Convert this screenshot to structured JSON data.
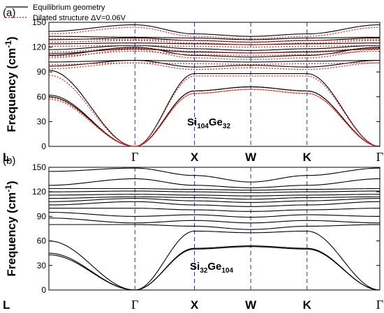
{
  "chart_data": [
    {
      "type": "line",
      "panel_label": "(a)",
      "ylabel": "Frequency (cm-1)",
      "ylabel_parts": {
        "main": "Frequency (cm",
        "sup": "-1",
        "close": ")"
      },
      "ylim": [
        0,
        150
      ],
      "yticks": [
        "0",
        "30",
        "60",
        "90",
        "120",
        "150"
      ],
      "kpoints": [
        "L",
        "Γ",
        "X",
        "W",
        "K",
        "Γ"
      ],
      "kpos": [
        0,
        0.26,
        0.44,
        0.61,
        0.78,
        1.0
      ],
      "annotation": {
        "element1": "Si",
        "sub1": "104",
        "element2": "Ge",
        "sub2": "32"
      },
      "legend": [
        {
          "label": "Equilibrium geometry",
          "style": "solid",
          "color": "#000000"
        },
        {
          "label": "Dilated structure ΔV=0.06V",
          "style": "dotted",
          "color": "#e0302a"
        }
      ],
      "series": [
        {
          "name": "Equilibrium geometry",
          "style": "solid",
          "color": "#000000",
          "bands": [
            [
              60,
              0,
              67,
              72,
              67,
              0
            ],
            [
              62,
              0,
              67,
              72,
              67,
              0
            ],
            [
              92,
              0,
              88,
              88,
              88,
              0
            ],
            [
              97,
              104,
              96,
              98,
              96,
              104
            ],
            [
              102,
              104,
              103,
              102,
              103,
              104
            ],
            [
              110,
              120,
              110,
              108,
              110,
              120
            ],
            [
              112,
              118,
              114,
              113,
              114,
              118
            ],
            [
              117,
              122,
              118,
              116,
              118,
              122
            ],
            [
              124,
              125,
              124,
              123,
              124,
              125
            ],
            [
              129,
              131,
              128,
              126,
              128,
              131
            ],
            [
              133,
              132,
              131,
              129,
              131,
              132
            ],
            [
              139,
              147,
              136,
              133,
              136,
              147
            ]
          ]
        },
        {
          "name": "Dilated structure ΔV=0.06V",
          "style": "dotted",
          "color": "#e0302a",
          "bands": [
            [
              57,
              0,
              64,
              69,
              64,
              0
            ],
            [
              59,
              0,
              64,
              69,
              64,
              0
            ],
            [
              86,
              0,
              85,
              85,
              85,
              0
            ],
            [
              94,
              101,
              93,
              95,
              93,
              101
            ],
            [
              99,
              101,
              100,
              99,
              100,
              101
            ],
            [
              107,
              117,
              107,
              105,
              107,
              117
            ],
            [
              109,
              115,
              111,
              110,
              111,
              115
            ],
            [
              114,
              119,
              115,
              113,
              115,
              119
            ],
            [
              121,
              122,
              121,
              120,
              121,
              122
            ],
            [
              126,
              128,
              125,
              123,
              125,
              128
            ],
            [
              130,
              129,
              128,
              126,
              128,
              129
            ],
            [
              136,
              144,
              133,
              130,
              133,
              144
            ]
          ]
        }
      ]
    },
    {
      "type": "line",
      "panel_label": "(b)",
      "ylabel": "Frequency (cm-1)",
      "ylabel_parts": {
        "main": "Frequency (cm",
        "sup": "-1",
        "close": ")"
      },
      "ylim": [
        0,
        150
      ],
      "yticks": [
        "0",
        "30",
        "60",
        "90",
        "120",
        "150"
      ],
      "kpoints": [
        "L",
        "Γ",
        "X",
        "W",
        "K",
        "Γ"
      ],
      "kpos": [
        0,
        0.26,
        0.44,
        0.61,
        0.78,
        1.0
      ],
      "annotation": {
        "element1": "Si",
        "sub1": "32",
        "element2": "Ge",
        "sub2": "104"
      },
      "series": [
        {
          "style": "solid",
          "color": "#000000",
          "bands": [
            [
              43,
              0,
              50,
              53,
              50,
              0
            ],
            [
              45,
              0,
              51,
              54,
              51,
              0
            ],
            [
              60,
              0,
              72,
              70,
              72,
              0
            ],
            [
              80,
              80,
              78,
              74,
              78,
              80
            ],
            [
              88,
              82,
              85,
              82,
              85,
              82
            ],
            [
              95,
              90,
              92,
              89,
              92,
              90
            ],
            [
              100,
              100,
              98,
              96,
              98,
              100
            ],
            [
              104,
              108,
              104,
              102,
              104,
              108
            ],
            [
              108,
              112,
              109,
              107,
              109,
              112
            ],
            [
              112,
              114,
              113,
              111,
              113,
              114
            ],
            [
              116,
              117,
              116,
              115,
              116,
              117
            ],
            [
              120,
              121,
              120,
              119,
              120,
              121
            ],
            [
              124,
              124,
              123,
              122,
              123,
              124
            ],
            [
              128,
              136,
              128,
              125,
              128,
              136
            ],
            [
              145,
              149,
              140,
              132,
              140,
              149
            ]
          ]
        }
      ]
    }
  ]
}
